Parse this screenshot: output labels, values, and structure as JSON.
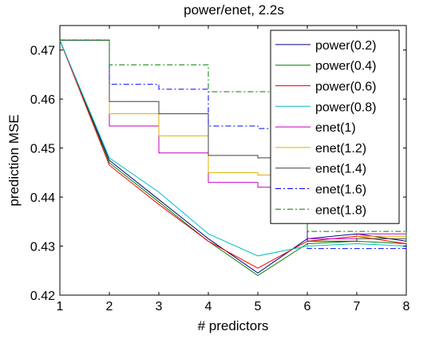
{
  "chart_data": {
    "type": "line",
    "title": "power/enet, 2.2s",
    "xlabel": "# predictors",
    "ylabel": "prediction MSE",
    "xlim": [
      1,
      8
    ],
    "ylim": [
      0.42,
      0.475
    ],
    "x_ticks": [
      1,
      2,
      3,
      4,
      5,
      6,
      7,
      8
    ],
    "y_ticks": [
      0.42,
      0.43,
      0.44,
      0.45,
      0.46,
      0.47
    ],
    "y_tick_labels": [
      "0.42",
      "0.43",
      "0.44",
      "0.45",
      "0.46",
      "0.47"
    ],
    "grid": false,
    "legend_position": "top-right",
    "x": [
      1,
      2,
      3,
      4,
      5,
      6,
      7,
      8
    ],
    "series": [
      {
        "name": "power(0.2)",
        "color": "#00007f",
        "line_style": "solid",
        "step": false,
        "values": [
          0.472,
          0.4475,
          0.4395,
          0.4315,
          0.4245,
          0.4315,
          0.4325,
          0.431
        ]
      },
      {
        "name": "power(0.4)",
        "color": "#007f00",
        "line_style": "solid",
        "step": false,
        "values": [
          0.472,
          0.447,
          0.439,
          0.431,
          0.424,
          0.4305,
          0.431,
          0.4305
        ]
      },
      {
        "name": "power(0.6)",
        "color": "#ff0000",
        "line_style": "solid",
        "step": false,
        "values": [
          0.472,
          0.4465,
          0.4385,
          0.431,
          0.4255,
          0.431,
          0.432,
          0.4305
        ]
      },
      {
        "name": "power(0.8)",
        "color": "#00bfbf",
        "line_style": "solid",
        "step": false,
        "values": [
          0.472,
          0.448,
          0.441,
          0.4325,
          0.428,
          0.43,
          0.4305,
          0.43
        ]
      },
      {
        "name": "enet(1)",
        "color": "#bf00bf",
        "line_style": "solid",
        "step": true,
        "values": [
          0.472,
          0.4545,
          0.449,
          0.443,
          0.442,
          0.4315,
          0.4325,
          0.431
        ]
      },
      {
        "name": "enet(1.2)",
        "color": "#dfb000",
        "line_style": "solid",
        "step": true,
        "values": [
          0.472,
          0.457,
          0.4525,
          0.445,
          0.4445,
          0.431,
          0.432,
          0.4305
        ]
      },
      {
        "name": "enet(1.4)",
        "color": "#404040",
        "line_style": "solid",
        "step": true,
        "values": [
          0.472,
          0.4595,
          0.457,
          0.4485,
          0.448,
          0.431,
          0.4315,
          0.431
        ]
      },
      {
        "name": "enet(1.6)",
        "color": "#0000ff",
        "line_style": "dashdot",
        "step": true,
        "values": [
          0.472,
          0.463,
          0.462,
          0.4545,
          0.454,
          0.4295,
          0.4295,
          0.4305
        ]
      },
      {
        "name": "enet(1.8)",
        "color": "#008000",
        "line_style": "dashdot",
        "step": true,
        "values": [
          0.472,
          0.467,
          0.467,
          0.4615,
          0.4615,
          0.433,
          0.433,
          0.4305
        ]
      }
    ]
  }
}
